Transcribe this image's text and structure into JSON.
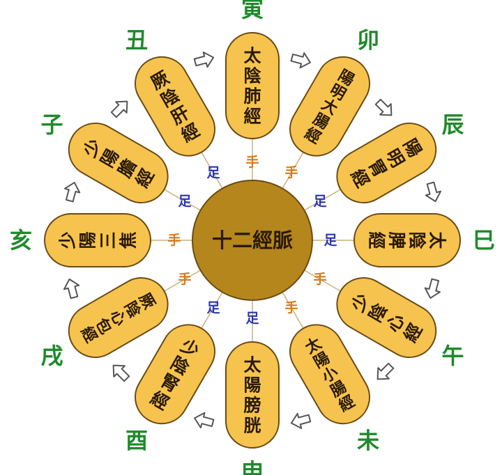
{
  "center": {
    "label": "十二經脈",
    "fill": "#b5861c"
  },
  "colors": {
    "petal_fill": "#f6c34e",
    "petal_stroke": "#6a4a14",
    "text": "#2a1a05",
    "branch": "#1f8a2a",
    "hand": "#d97a18",
    "foot": "#2a35b5",
    "arrow_stroke": "#555555"
  },
  "meridians": [
    {
      "branch": "寅",
      "name": "太陰肺經",
      "limb": "手"
    },
    {
      "branch": "卯",
      "name": "陽明大腸經",
      "limb": "手"
    },
    {
      "branch": "辰",
      "name": "陽明胃經",
      "limb": "足"
    },
    {
      "branch": "巳",
      "name": "太陰脾經",
      "limb": "足"
    },
    {
      "branch": "午",
      "name": "少陰心經",
      "limb": "手"
    },
    {
      "branch": "未",
      "name": "太陽小腸經",
      "limb": "手"
    },
    {
      "branch": "申",
      "name": "太陽膀胱",
      "limb": "足"
    },
    {
      "branch": "酉",
      "name": "少陰腎經",
      "limb": "足"
    },
    {
      "branch": "戌",
      "name": "厥陰心包經",
      "limb": "手"
    },
    {
      "branch": "亥",
      "name": "少陽三焦",
      "limb": "手"
    },
    {
      "branch": "子",
      "name": "少陽膽經",
      "limb": "足"
    },
    {
      "branch": "丑",
      "name": "厥陰肝經",
      "limb": "足"
    }
  ]
}
